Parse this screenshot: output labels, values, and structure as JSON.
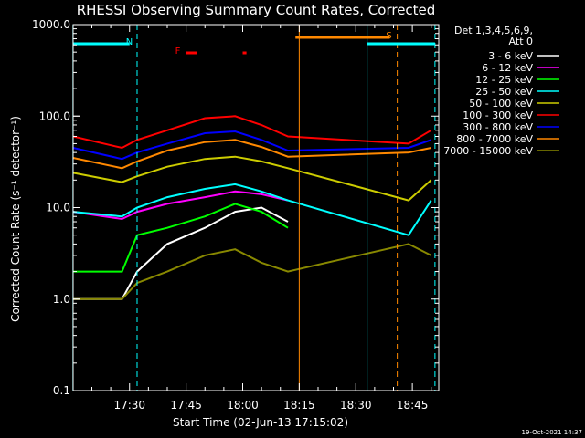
{
  "chart_data": {
    "type": "line",
    "title": "RHESSI Observing Summary Count Rates, Corrected",
    "xlabel": "Start Time (02-Jun-13 17:15:02)",
    "ylabel": "Corrected Count Rate (s⁻¹ detector⁻¹)",
    "y_scale": "log",
    "ylim": [
      0.1,
      1000
    ],
    "xlim": [
      "17:15:02",
      "18:52:00"
    ],
    "x_ticks": [
      "17:30",
      "17:45",
      "18:00",
      "18:15",
      "18:30",
      "18:45"
    ],
    "y_ticks": [
      "0.1",
      "1.0",
      "10.0",
      "100.0",
      "1000.0"
    ],
    "legend_header": [
      "Det 1,3,4,5,6,9,",
      "Att 0"
    ],
    "legend_position": "right",
    "timestamp": "19-Oct-2021 14:37",
    "series": [
      {
        "name": "3 - 6 keV",
        "color": "#ffffff",
        "t": [
          "17:15",
          "17:28",
          "17:32",
          "17:40",
          "17:50",
          "17:58",
          "18:05",
          "18:12",
          "18:44",
          "18:50"
        ],
        "values": [
          1.0,
          1.0,
          2.0,
          4.0,
          6.0,
          9.0,
          10.0,
          7.0,
          null,
          null
        ]
      },
      {
        "name": "6 - 12 keV",
        "color": "#ff00ff",
        "t": [
          "17:15",
          "17:28",
          "17:32",
          "17:40",
          "17:50",
          "17:58",
          "18:05",
          "18:12",
          "18:44",
          "18:50"
        ],
        "values": [
          9.0,
          7.5,
          9.0,
          11.0,
          13.0,
          15.0,
          14.0,
          12.0,
          null,
          null
        ]
      },
      {
        "name": "12 - 25 keV",
        "color": "#00ff00",
        "t": [
          "17:15",
          "17:28",
          "17:32",
          "17:40",
          "17:50",
          "17:58",
          "18:05",
          "18:12",
          "18:44",
          "18:50"
        ],
        "values": [
          2.0,
          2.0,
          5.0,
          6.0,
          8.0,
          11.0,
          9.0,
          6.0,
          null,
          null
        ]
      },
      {
        "name": "25 - 50 keV",
        "color": "#00ffff",
        "t": [
          "17:15",
          "17:28",
          "17:32",
          "17:40",
          "17:50",
          "17:58",
          "18:05",
          "18:12",
          "18:44",
          "18:50"
        ],
        "values": [
          9.0,
          8.0,
          10.0,
          13.0,
          16.0,
          18.0,
          15.0,
          12.0,
          5.0,
          12.0
        ]
      },
      {
        "name": "50 - 100 keV",
        "color": "#cccc00",
        "t": [
          "17:15",
          "17:28",
          "17:32",
          "17:40",
          "17:50",
          "17:58",
          "18:05",
          "18:12",
          "18:44",
          "18:50"
        ],
        "values": [
          24.0,
          19.0,
          22.0,
          28.0,
          34.0,
          36.0,
          32.0,
          27.0,
          12.0,
          20.0
        ]
      },
      {
        "name": "100 - 300 keV",
        "color": "#ff0000",
        "t": [
          "17:15",
          "17:28",
          "17:32",
          "17:40",
          "17:50",
          "17:58",
          "18:05",
          "18:12",
          "18:44",
          "18:50"
        ],
        "values": [
          60.0,
          45.0,
          55.0,
          70.0,
          95.0,
          100.0,
          80.0,
          60.0,
          50.0,
          70.0
        ]
      },
      {
        "name": "300 - 800 keV",
        "color": "#0000ff",
        "t": [
          "17:15",
          "17:28",
          "17:32",
          "17:40",
          "17:50",
          "17:58",
          "18:05",
          "18:12",
          "18:44",
          "18:50"
        ],
        "values": [
          45.0,
          34.0,
          40.0,
          50.0,
          65.0,
          68.0,
          55.0,
          42.0,
          45.0,
          55.0
        ]
      },
      {
        "name": "800 - 7000 keV",
        "color": "#ff8800",
        "t": [
          "17:15",
          "17:28",
          "17:32",
          "17:40",
          "17:50",
          "17:58",
          "18:05",
          "18:12",
          "18:44",
          "18:50"
        ],
        "values": [
          35.0,
          27.0,
          32.0,
          42.0,
          52.0,
          55.0,
          46.0,
          36.0,
          40.0,
          45.0
        ]
      },
      {
        "name": "7000 - 15000 keV",
        "color": "#888800",
        "t": [
          "17:15",
          "17:28",
          "17:32",
          "17:40",
          "17:50",
          "17:58",
          "18:05",
          "18:12",
          "18:44",
          "18:50"
        ],
        "values": [
          1.0,
          1.0,
          1.5,
          2.0,
          3.0,
          3.5,
          2.5,
          2.0,
          4.0,
          3.0
        ]
      }
    ],
    "flags": [
      {
        "label": "N",
        "color": "#00ffff",
        "spans": [
          [
            "17:15",
            "17:30"
          ],
          [
            "18:33",
            "18:51"
          ]
        ],
        "marker": "17:30"
      },
      {
        "label": "F",
        "color": "#ff0000",
        "spans": [
          [
            "17:45",
            "17:48"
          ],
          [
            "18:00",
            "18:01"
          ]
        ]
      },
      {
        "label": "S",
        "color": "#ff8800",
        "spans": [
          [
            "18:14",
            "18:39"
          ]
        ],
        "marker": "18:39"
      }
    ],
    "vertical_lines": [
      {
        "t": "17:15",
        "color": "#00ffff",
        "style": "solid"
      },
      {
        "t": "17:32",
        "color": "#00ffff",
        "style": "dashed"
      },
      {
        "t": "18:15",
        "color": "#ff8800",
        "style": "solid"
      },
      {
        "t": "18:33",
        "color": "#00ffff",
        "style": "solid"
      },
      {
        "t": "18:41",
        "color": "#ff8800",
        "style": "dashed"
      },
      {
        "t": "18:51",
        "color": "#00ffff",
        "style": "dashed"
      }
    ]
  }
}
